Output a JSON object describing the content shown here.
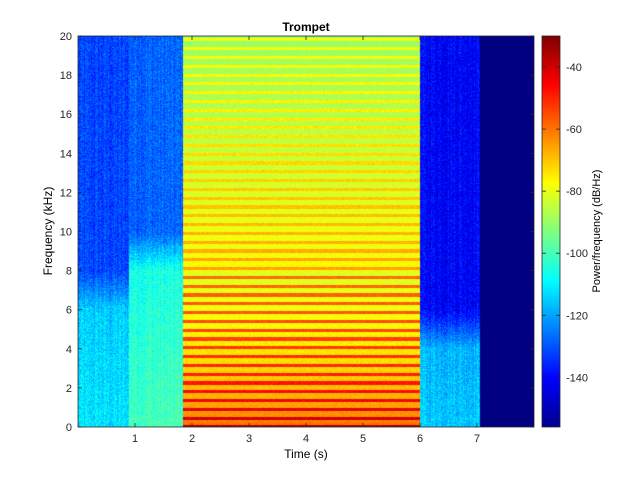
{
  "chart_data": {
    "type": "heatmap",
    "subtype": "spectrogram",
    "title": "Trompet",
    "xlabel": "Time (s)",
    "ylabel": "Frequency (kHz)",
    "xlim": [
      0,
      8
    ],
    "ylim": [
      0,
      20
    ],
    "xticks": [
      1,
      2,
      3,
      4,
      5,
      6,
      7
    ],
    "yticks": [
      0,
      2,
      4,
      6,
      8,
      10,
      12,
      14,
      16,
      18,
      20
    ],
    "colormap": "jet",
    "colorbar": {
      "label": "Power/frequency (dB/Hz)",
      "range": [
        -156,
        -30
      ],
      "ticks": [
        -140,
        -120,
        -100,
        -80,
        -60,
        -40
      ]
    },
    "segments": [
      {
        "t_start": 0.0,
        "t_end": 0.9,
        "description_level": "noise",
        "low_band_khz": [
          0,
          6
        ],
        "low_band_db": -112,
        "high_band_db": -132
      },
      {
        "t_start": 0.9,
        "t_end": 1.85,
        "description_level": "breath",
        "low_band_khz": [
          0,
          8
        ],
        "low_band_db": -100,
        "high_band_db": -128
      },
      {
        "t_start": 1.85,
        "t_end": 6.0,
        "description_level": "note",
        "fundamental_khz": 0.45,
        "harmonics_to_khz": 20,
        "low_band_db": -45,
        "high_band_db": -85
      },
      {
        "t_start": 6.0,
        "t_end": 7.05,
        "description_level": "decay",
        "low_band_khz": [
          0,
          4
        ],
        "low_band_db": -115,
        "high_band_db": -140
      },
      {
        "t_start": 7.05,
        "t_end": 8.0,
        "description_level": "silence",
        "low_band_db": -156,
        "high_band_db": -156
      }
    ]
  }
}
